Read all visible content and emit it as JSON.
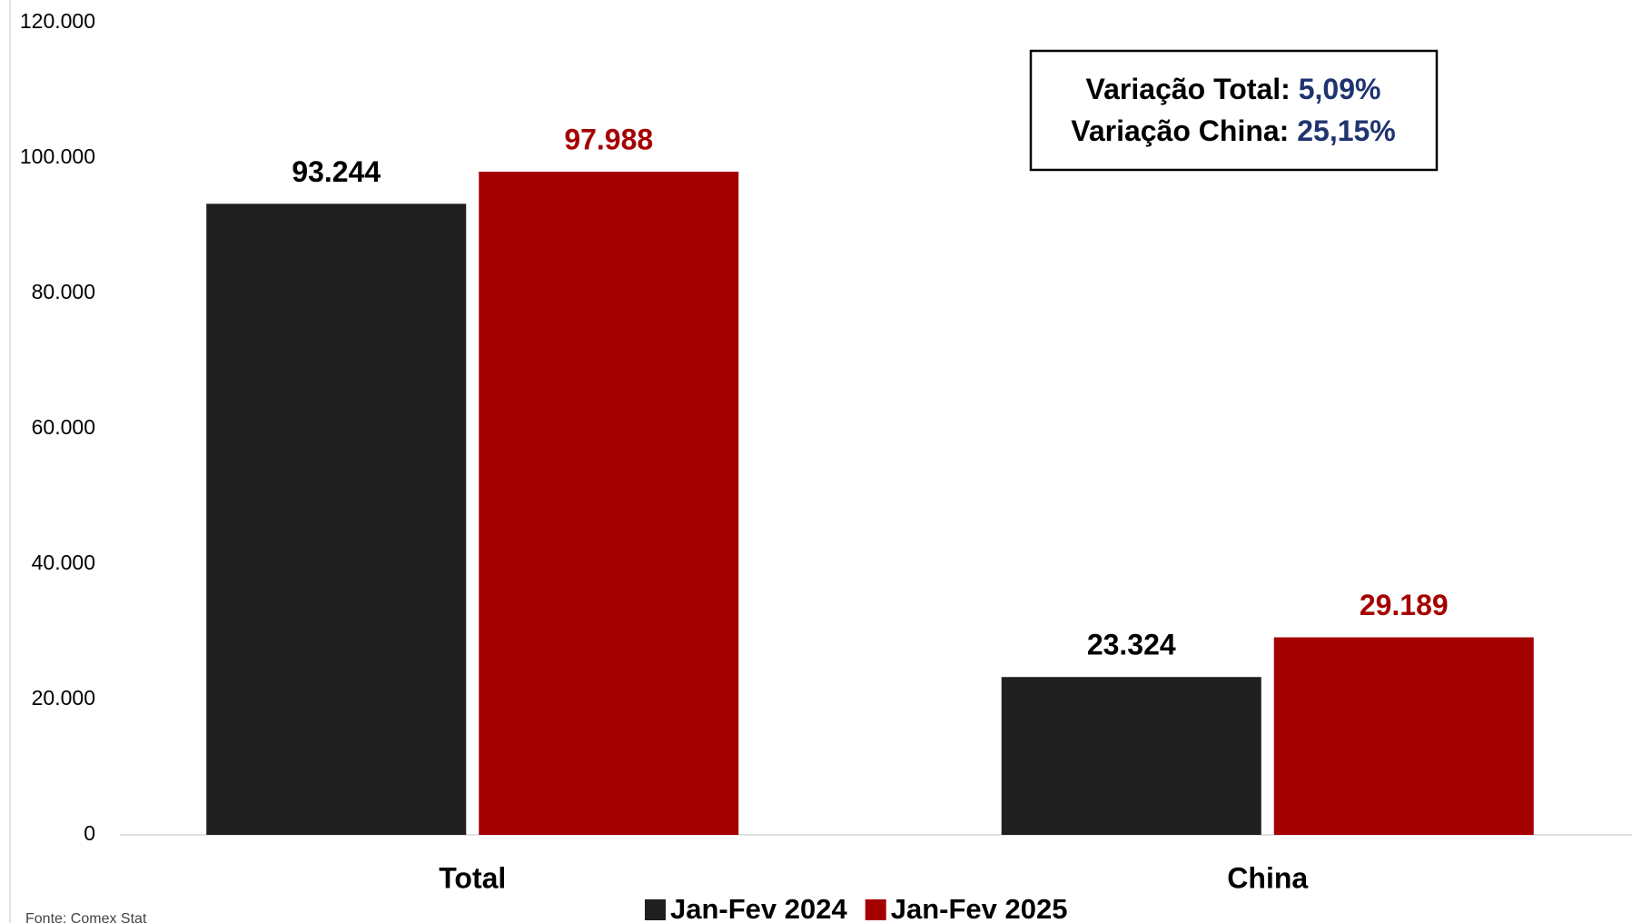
{
  "chart_data": {
    "type": "bar",
    "categories": [
      "Total",
      "China"
    ],
    "series": [
      {
        "name": "Jan-Fev 2024",
        "color": "#1f1f1f",
        "values": [
          93244,
          23324
        ],
        "value_labels": [
          "93.244",
          "23.324"
        ],
        "label_color": "#000000"
      },
      {
        "name": "Jan-Fev 2025",
        "color": "#a50000",
        "values": [
          97988,
          29189
        ],
        "value_labels": [
          "97.988",
          "29.189"
        ],
        "label_color": "#a50000"
      }
    ],
    "ylim": [
      0,
      120000
    ],
    "yticks": [
      0,
      {
        "value": 20000,
        "label": "20.000"
      },
      {
        "value": 40000,
        "label": "40.000"
      },
      {
        "value": 60000,
        "label": "60.000"
      },
      {
        "value": 80000,
        "label": "80.000"
      },
      {
        "value": 100000,
        "label": "100.000"
      },
      {
        "value": 120000,
        "label": "120.000"
      }
    ],
    "grid": false,
    "legend": "bottom",
    "annotation": [
      {
        "label": "Variação Total:",
        "value": "5,09%"
      },
      {
        "label": "Variação China:",
        "value": "25,15%"
      }
    ],
    "annotation_value_color": "#1f3370",
    "source": "Fonte: Comex Stat"
  }
}
